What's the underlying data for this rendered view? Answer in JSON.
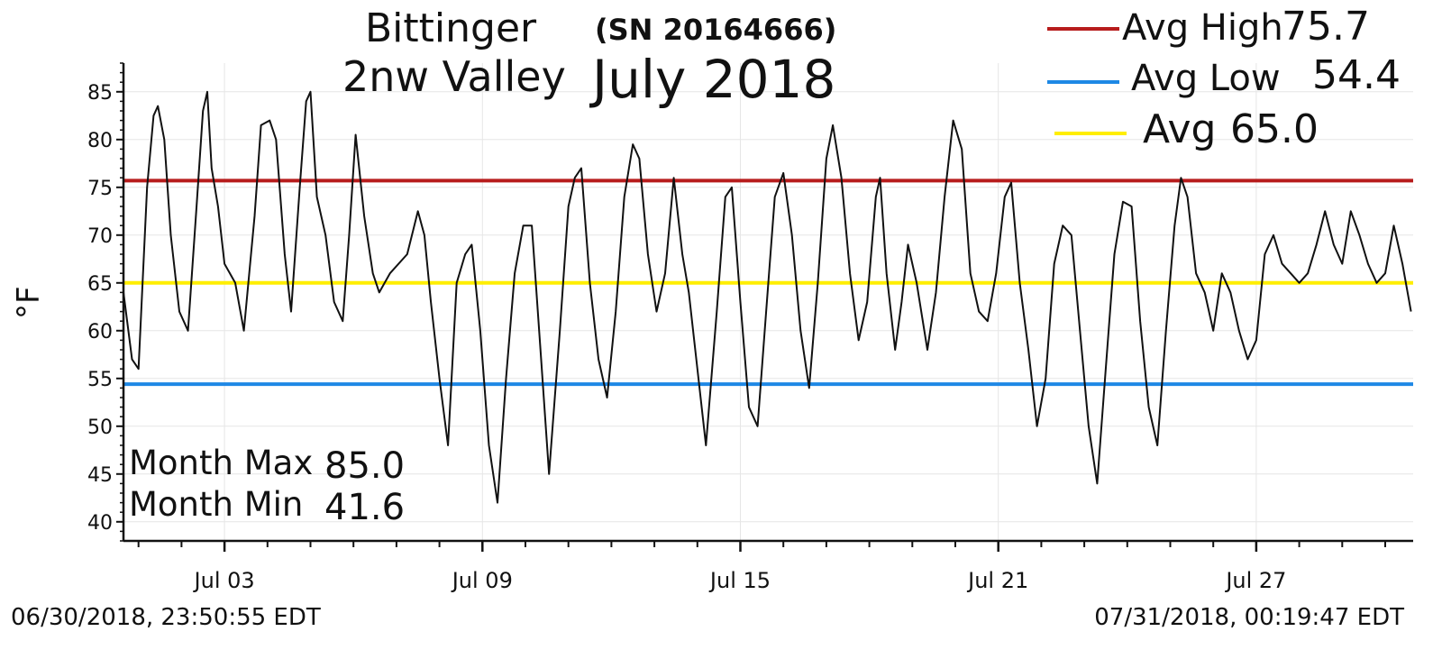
{
  "header": {
    "title_line1": "Bittinger",
    "title_line2": "2nw Valley",
    "serial": "(SN 20164666)",
    "month": "July 2018"
  },
  "legend": {
    "avg_high_label": "Avg High",
    "avg_high_value": "75.7",
    "avg_low_label": "Avg Low",
    "avg_low_value": "54.4",
    "avg_label": "Avg",
    "avg_value": "65.0"
  },
  "stats": {
    "max_label": "Month Max",
    "max_value": "85.0",
    "min_label": "Month Min",
    "min_value": "41.6"
  },
  "footer": {
    "start": "06/30/2018, 23:50:55 EDT",
    "end": "07/31/2018, 00:19:47 EDT"
  },
  "colors": {
    "avg_high": "#b71c1c",
    "avg_low": "#1e88e5",
    "avg": "#ffee00",
    "temperature": "#111111",
    "grid": "#e6e6e6"
  },
  "chart_data": {
    "type": "line",
    "title": "July 2018",
    "xlabel": "",
    "ylabel": "°F",
    "ylim": [
      38,
      88
    ],
    "xlim": [
      0.0,
      30.0
    ],
    "x_unit": "days since 06/30/2018 23:50 EDT",
    "yticks": [
      40,
      45,
      50,
      55,
      60,
      65,
      70,
      75,
      80,
      85
    ],
    "xticks": [
      {
        "day": 2.35,
        "label": "Jul 03"
      },
      {
        "day": 8.35,
        "label": "Jul 09"
      },
      {
        "day": 14.35,
        "label": "Jul 15"
      },
      {
        "day": 20.35,
        "label": "Jul 21"
      },
      {
        "day": 26.35,
        "label": "Jul 27"
      }
    ],
    "grid": true,
    "reference_lines": [
      {
        "name": "Avg High",
        "value": 75.7,
        "color": "#b71c1c"
      },
      {
        "name": "Avg Low",
        "value": 54.4,
        "color": "#1e88e5"
      },
      {
        "name": "Avg",
        "value": 65.0,
        "color": "#ffee00"
      }
    ],
    "series": [
      {
        "name": "Temperature",
        "color": "#111111",
        "points": [
          [
            0.0,
            64.0
          ],
          [
            0.2,
            57.0
          ],
          [
            0.35,
            56.0
          ],
          [
            0.55,
            75.0
          ],
          [
            0.7,
            82.5
          ],
          [
            0.8,
            83.5
          ],
          [
            0.95,
            80.0
          ],
          [
            1.1,
            70.0
          ],
          [
            1.3,
            62.0
          ],
          [
            1.5,
            60.0
          ],
          [
            1.7,
            73.0
          ],
          [
            1.85,
            83.0
          ],
          [
            1.95,
            85.0
          ],
          [
            2.05,
            77.0
          ],
          [
            2.2,
            73.0
          ],
          [
            2.35,
            67.0
          ],
          [
            2.6,
            65.0
          ],
          [
            2.8,
            60.0
          ],
          [
            3.05,
            72.0
          ],
          [
            3.2,
            81.5
          ],
          [
            3.4,
            82.0
          ],
          [
            3.55,
            80.0
          ],
          [
            3.75,
            68.0
          ],
          [
            3.9,
            62.0
          ],
          [
            4.1,
            75.0
          ],
          [
            4.25,
            84.0
          ],
          [
            4.35,
            85.0
          ],
          [
            4.5,
            74.0
          ],
          [
            4.7,
            70.0
          ],
          [
            4.9,
            63.0
          ],
          [
            5.1,
            61.0
          ],
          [
            5.25,
            70.0
          ],
          [
            5.4,
            80.5
          ],
          [
            5.6,
            72.0
          ],
          [
            5.8,
            66.0
          ],
          [
            5.95,
            64.0
          ],
          [
            6.2,
            66.0
          ],
          [
            6.6,
            68.0
          ],
          [
            6.85,
            72.5
          ],
          [
            7.0,
            70.0
          ],
          [
            7.15,
            63.0
          ],
          [
            7.35,
            55.0
          ],
          [
            7.55,
            48.0
          ],
          [
            7.75,
            65.0
          ],
          [
            7.95,
            68.0
          ],
          [
            8.1,
            69.0
          ],
          [
            8.3,
            60.0
          ],
          [
            8.5,
            48.0
          ],
          [
            8.7,
            42.0
          ],
          [
            8.9,
            55.0
          ],
          [
            9.1,
            66.0
          ],
          [
            9.3,
            71.0
          ],
          [
            9.5,
            71.0
          ],
          [
            9.7,
            58.0
          ],
          [
            9.9,
            45.0
          ],
          [
            10.15,
            60.0
          ],
          [
            10.35,
            73.0
          ],
          [
            10.5,
            76.0
          ],
          [
            10.65,
            77.0
          ],
          [
            10.85,
            65.0
          ],
          [
            11.05,
            57.0
          ],
          [
            11.25,
            53.0
          ],
          [
            11.45,
            62.0
          ],
          [
            11.65,
            74.0
          ],
          [
            11.85,
            79.5
          ],
          [
            12.0,
            78.0
          ],
          [
            12.2,
            68.0
          ],
          [
            12.4,
            62.0
          ],
          [
            12.6,
            66.0
          ],
          [
            12.8,
            76.0
          ],
          [
            13.0,
            68.0
          ],
          [
            13.15,
            64.0
          ],
          [
            13.35,
            56.0
          ],
          [
            13.55,
            48.0
          ],
          [
            13.8,
            62.0
          ],
          [
            14.0,
            74.0
          ],
          [
            14.15,
            75.0
          ],
          [
            14.35,
            63.0
          ],
          [
            14.55,
            52.0
          ],
          [
            14.75,
            50.0
          ],
          [
            14.95,
            62.0
          ],
          [
            15.15,
            74.0
          ],
          [
            15.35,
            76.5
          ],
          [
            15.55,
            70.0
          ],
          [
            15.75,
            60.0
          ],
          [
            15.95,
            54.0
          ],
          [
            16.15,
            65.0
          ],
          [
            16.35,
            78.0
          ],
          [
            16.5,
            81.5
          ],
          [
            16.7,
            76.0
          ],
          [
            16.9,
            66.0
          ],
          [
            17.1,
            59.0
          ],
          [
            17.3,
            63.0
          ],
          [
            17.5,
            74.0
          ],
          [
            17.6,
            76.0
          ],
          [
            17.75,
            66.0
          ],
          [
            17.95,
            58.0
          ],
          [
            18.1,
            63.0
          ],
          [
            18.25,
            69.0
          ],
          [
            18.45,
            65.0
          ],
          [
            18.7,
            58.0
          ],
          [
            18.9,
            64.0
          ],
          [
            19.1,
            74.0
          ],
          [
            19.3,
            82.0
          ],
          [
            19.5,
            79.0
          ],
          [
            19.7,
            66.0
          ],
          [
            19.9,
            62.0
          ],
          [
            20.1,
            61.0
          ],
          [
            20.3,
            66.0
          ],
          [
            20.5,
            74.0
          ],
          [
            20.65,
            75.5
          ],
          [
            20.85,
            65.0
          ],
          [
            21.05,
            58.0
          ],
          [
            21.25,
            50.0
          ],
          [
            21.45,
            55.0
          ],
          [
            21.65,
            67.0
          ],
          [
            21.85,
            71.0
          ],
          [
            22.05,
            70.0
          ],
          [
            22.25,
            60.0
          ],
          [
            22.45,
            50.0
          ],
          [
            22.65,
            44.0
          ],
          [
            22.85,
            56.0
          ],
          [
            23.05,
            68.0
          ],
          [
            23.25,
            73.5
          ],
          [
            23.45,
            73.0
          ],
          [
            23.65,
            61.0
          ],
          [
            23.85,
            52.0
          ],
          [
            24.05,
            48.0
          ],
          [
            24.25,
            60.0
          ],
          [
            24.45,
            71.0
          ],
          [
            24.6,
            76.0
          ],
          [
            24.75,
            74.0
          ],
          [
            24.95,
            66.0
          ],
          [
            25.15,
            64.0
          ],
          [
            25.35,
            60.0
          ],
          [
            25.55,
            66.0
          ],
          [
            25.75,
            64.0
          ],
          [
            25.95,
            60.0
          ],
          [
            26.15,
            57.0
          ],
          [
            26.35,
            59.0
          ],
          [
            26.55,
            68.0
          ],
          [
            26.75,
            70.0
          ],
          [
            26.95,
            67.0
          ],
          [
            27.15,
            66.0
          ],
          [
            27.35,
            65.0
          ],
          [
            27.55,
            66.0
          ],
          [
            27.75,
            69.0
          ],
          [
            27.95,
            72.5
          ],
          [
            28.15,
            69.0
          ],
          [
            28.35,
            67.0
          ],
          [
            28.55,
            72.5
          ],
          [
            28.75,
            70.0
          ],
          [
            28.95,
            67.0
          ],
          [
            29.15,
            65.0
          ],
          [
            29.35,
            66.0
          ],
          [
            29.55,
            71.0
          ],
          [
            29.75,
            67.0
          ],
          [
            29.95,
            62.0
          ]
        ]
      }
    ]
  }
}
